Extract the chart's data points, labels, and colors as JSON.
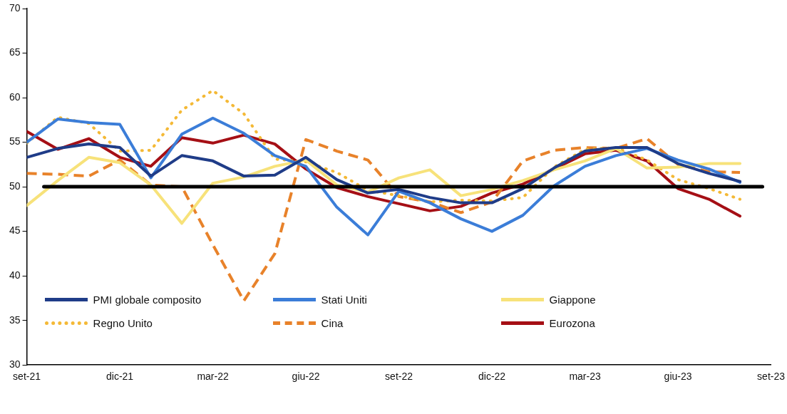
{
  "chart_data": {
    "type": "line",
    "x": [
      "2021-09",
      "2021-10",
      "2021-11",
      "2021-12",
      "2022-01",
      "2022-02",
      "2022-03",
      "2022-04",
      "2022-05",
      "2022-06",
      "2022-07",
      "2022-08",
      "2022-09",
      "2022-10",
      "2022-11",
      "2022-12",
      "2023-01",
      "2023-02",
      "2023-03",
      "2023-04",
      "2023-05",
      "2023-06",
      "2023-07",
      "2023-08"
    ],
    "xlim": [
      "2021-09",
      "2023-09"
    ],
    "xticks": [
      {
        "value": "2021-09",
        "label": "set-21"
      },
      {
        "value": "2021-12",
        "label": "dic-21"
      },
      {
        "value": "2022-03",
        "label": "mar-22"
      },
      {
        "value": "2022-06",
        "label": "giu-22"
      },
      {
        "value": "2022-09",
        "label": "set-22"
      },
      {
        "value": "2022-12",
        "label": "dic-22"
      },
      {
        "value": "2023-03",
        "label": "mar-23"
      },
      {
        "value": "2023-06",
        "label": "giu-23"
      },
      {
        "value": "2023-09",
        "label": "set-23"
      }
    ],
    "ylim": [
      30,
      70
    ],
    "yticks": [
      30,
      35,
      40,
      45,
      50,
      55,
      60,
      65,
      70
    ],
    "grid": false,
    "legend": "bottom",
    "ref_lines": [
      {
        "axis": "y",
        "value": 50,
        "color": "#000000"
      }
    ],
    "series": [
      {
        "name": "PMI globale composito",
        "color": "#1f3c88",
        "line_style": "solid",
        "values": [
          53.3,
          54.3,
          54.8,
          54.4,
          51.2,
          53.5,
          52.9,
          51.2,
          51.3,
          53.3,
          50.8,
          49.3,
          49.7,
          48.8,
          48.2,
          48.2,
          49.8,
          52.1,
          54.0,
          54.4,
          54.4,
          52.6,
          51.5,
          50.6
        ]
      },
      {
        "name": "Stati Uniti",
        "color": "#3b7dd8",
        "line_style": "solid",
        "values": [
          55.0,
          57.6,
          57.2,
          57.0,
          51.0,
          55.9,
          57.7,
          56.0,
          53.5,
          52.3,
          47.7,
          44.6,
          49.5,
          48.2,
          46.4,
          45.0,
          46.8,
          50.1,
          52.3,
          53.5,
          54.3,
          53.0,
          52.0,
          50.5
        ]
      },
      {
        "name": "Giappone",
        "color": "#f7e27a",
        "line_style": "solid",
        "values": [
          47.9,
          50.7,
          53.3,
          52.7,
          50.2,
          45.9,
          50.4,
          51.1,
          52.3,
          53.0,
          50.2,
          49.4,
          51.0,
          51.9,
          49.0,
          49.7,
          50.7,
          51.9,
          52.9,
          54.3,
          52.1,
          52.2,
          52.6,
          52.6
        ]
      },
      {
        "name": "Regno Unito",
        "color": "#f4b936",
        "line_style": "dotted",
        "values": [
          54.9,
          57.8,
          57.1,
          54.0,
          54.1,
          58.6,
          60.8,
          58.2,
          53.1,
          52.8,
          51.6,
          49.6,
          49.0,
          48.3,
          48.5,
          48.4,
          48.8,
          52.2,
          54.2,
          54.4,
          53.0,
          50.8,
          49.8,
          48.6
        ]
      },
      {
        "name": "Cina",
        "color": "#e8822a",
        "line_style": "dashed",
        "values": [
          51.5,
          51.4,
          51.2,
          53.0,
          50.2,
          50.0,
          43.5,
          37.2,
          42.5,
          55.3,
          54.0,
          53.0,
          48.9,
          48.3,
          47.1,
          48.3,
          52.9,
          54.1,
          54.4,
          54.3,
          55.4,
          52.5,
          51.7,
          51.6
        ]
      },
      {
        "name": "Eurozona",
        "color": "#a50f15",
        "line_style": "solid",
        "values": [
          56.2,
          54.2,
          55.4,
          53.3,
          52.3,
          55.5,
          54.9,
          55.8,
          54.8,
          52.0,
          49.9,
          48.9,
          48.1,
          47.3,
          47.8,
          49.3,
          50.3,
          52.0,
          53.7,
          54.1,
          52.9,
          49.8,
          48.6,
          46.7
        ]
      }
    ]
  }
}
